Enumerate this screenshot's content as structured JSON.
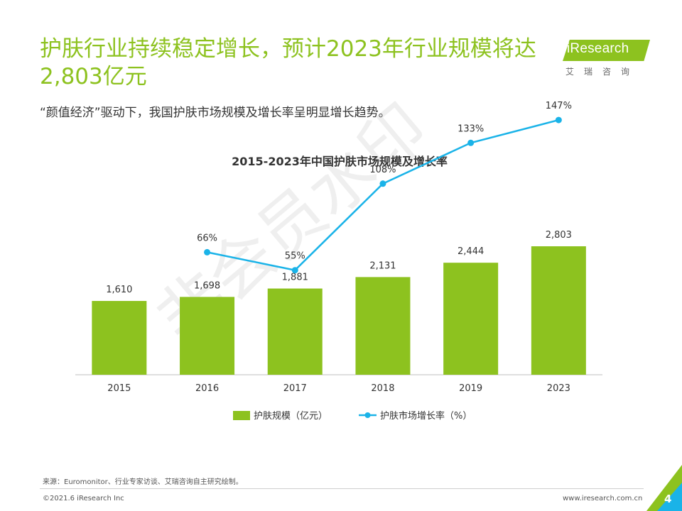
{
  "header": {
    "title": "护肤行业持续稳定增长，预计2023年行业规模将达2,803亿元",
    "subtitle": "“颜值经济”驱动下，我国护肤市场规模及增长率呈明显增长趋势。"
  },
  "logo": {
    "text": "iResearch",
    "sub": "艾瑞咨询"
  },
  "watermark": "非会员水印",
  "colors": {
    "bar": "#8dc21f",
    "line": "#1ab3e8",
    "title": "#8dc21f"
  },
  "chart_data": {
    "type": "bar",
    "title": "2015-2023年中国护肤市场规模及增长率",
    "categories": [
      "2015",
      "2016",
      "2017",
      "2018",
      "2019",
      "2023"
    ],
    "series": [
      {
        "name": "护肤规模（亿元）",
        "type": "bar",
        "values": [
          1610,
          1698,
          1881,
          2131,
          2444,
          2803
        ],
        "labels": [
          "1,610",
          "1,698",
          "1,881",
          "2,131",
          "2,444",
          "2,803"
        ]
      },
      {
        "name": "护肤市场增长率（%）",
        "type": "line",
        "values": [
          null,
          66,
          55,
          108,
          133,
          147
        ],
        "labels": [
          "",
          "66%",
          "55%",
          "108%",
          "133%",
          "147%"
        ]
      }
    ],
    "legend": "bottom",
    "grid": false
  },
  "footer": {
    "source": "来源：Euromonitor、行业专家访谈、艾瑞咨询自主研究绘制。",
    "copyright": "©2021.6 iResearch Inc",
    "url": "www.iresearch.com.cn",
    "page": "4"
  }
}
